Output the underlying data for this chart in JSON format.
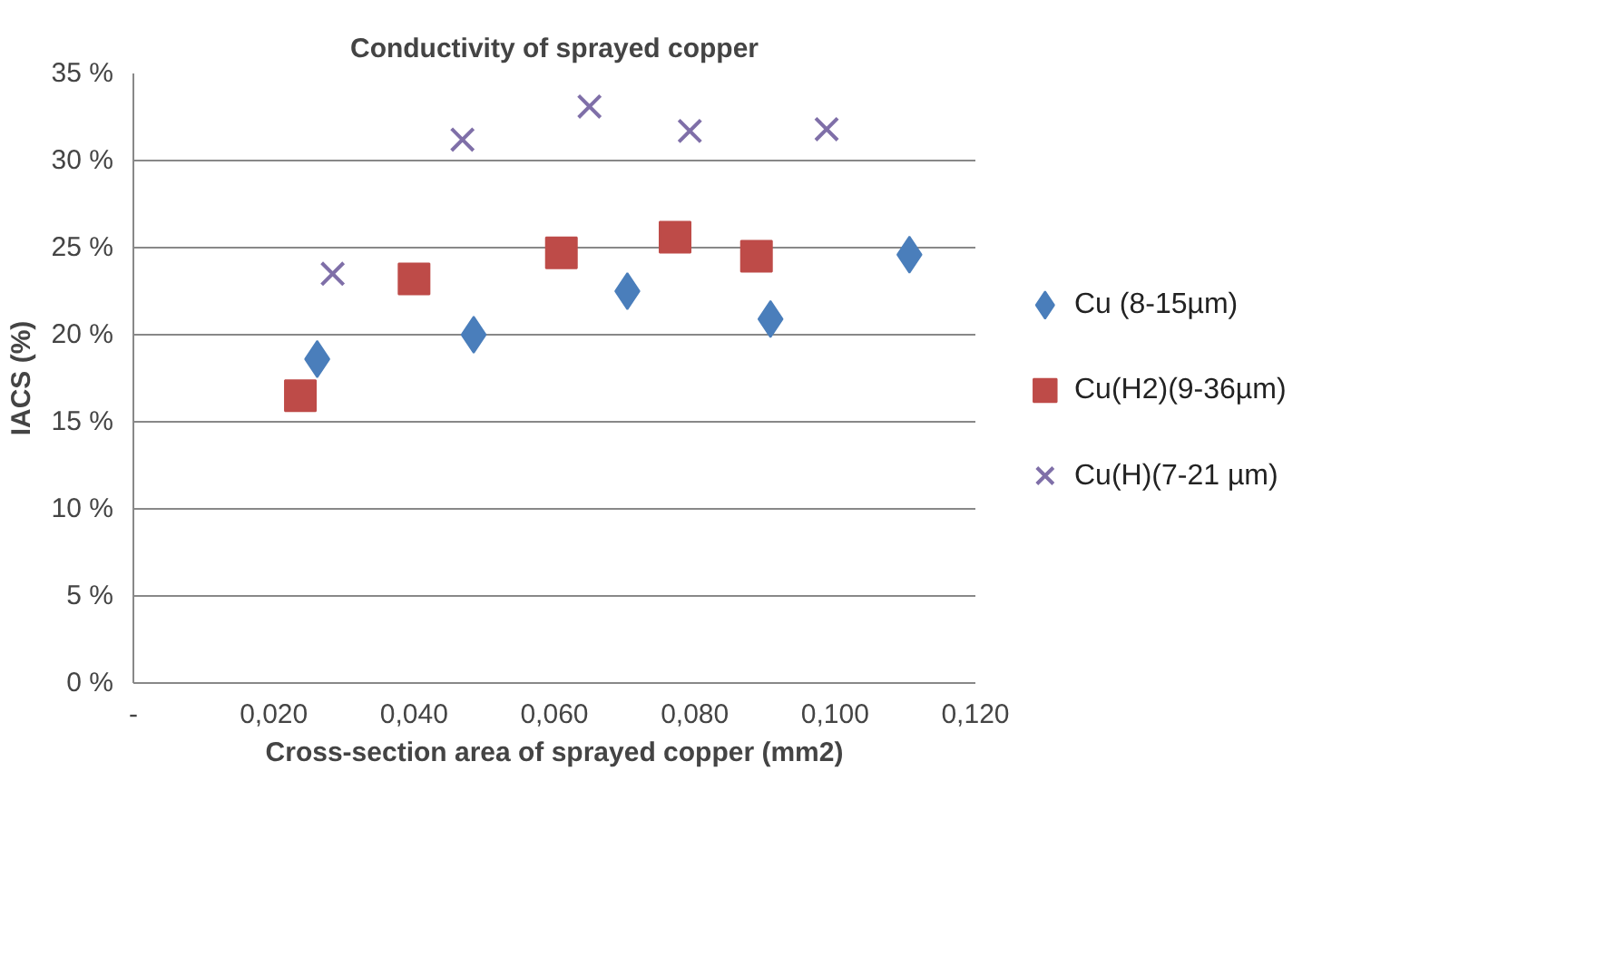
{
  "chart_data": {
    "type": "scatter",
    "title": "Conductivity of sprayed copper",
    "xlabel": "Cross-section area of sprayed copper (mm2)",
    "ylabel": "IACS (%)",
    "xlim": [
      0,
      0.12
    ],
    "xticks": [
      {
        "value": 0,
        "label": "-"
      },
      {
        "value": 0.02,
        "label": "0,020"
      },
      {
        "value": 0.04,
        "label": "0,040"
      },
      {
        "value": 0.06,
        "label": "0,060"
      },
      {
        "value": 0.08,
        "label": "0,080"
      },
      {
        "value": 0.1,
        "label": "0,100"
      },
      {
        "value": 0.12,
        "label": "0,120"
      }
    ],
    "ylim": [
      0,
      35
    ],
    "yticks": [
      {
        "value": 0,
        "label": "0 %"
      },
      {
        "value": 5,
        "label": "5 %"
      },
      {
        "value": 10,
        "label": "10 %"
      },
      {
        "value": 15,
        "label": "15 %"
      },
      {
        "value": 20,
        "label": "20 %"
      },
      {
        "value": 25,
        "label": "25 %"
      },
      {
        "value": 30,
        "label": "30 %"
      },
      {
        "value": 35,
        "label": "35 %"
      }
    ],
    "grid": "y",
    "legend": "right",
    "series": [
      {
        "name": "Cu (8-15µm)",
        "color": "#4a7ebb",
        "marker": "diamond",
        "x": [
          0.0262,
          0.0485,
          0.0704,
          0.0908,
          0.1106
        ],
        "values": [
          18.6,
          20.0,
          22.5,
          20.9,
          24.6
        ]
      },
      {
        "name": "Cu(H2)(9-36µm)",
        "color": "#be4b48",
        "marker": "square",
        "x": [
          0.0238,
          0.04,
          0.061,
          0.0772,
          0.0888
        ],
        "values": [
          16.5,
          23.2,
          24.7,
          25.6,
          24.5
        ]
      },
      {
        "name": "Cu(H)(7-21 µm)",
        "color": "#7f6fa8",
        "marker": "cross",
        "x": [
          0.0284,
          0.0469,
          0.065,
          0.0793,
          0.0988
        ],
        "values": [
          23.5,
          31.2,
          33.1,
          31.7,
          31.8
        ]
      }
    ]
  }
}
